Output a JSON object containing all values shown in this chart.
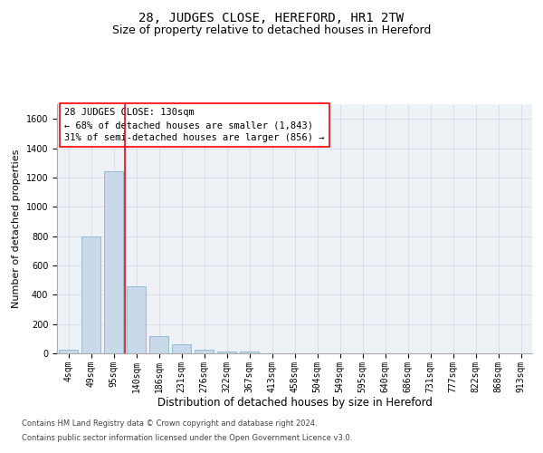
{
  "title": "28, JUDGES CLOSE, HEREFORD, HR1 2TW",
  "subtitle": "Size of property relative to detached houses in Hereford",
  "xlabel": "Distribution of detached houses by size in Hereford",
  "ylabel": "Number of detached properties",
  "categories": [
    "4sqm",
    "49sqm",
    "95sqm",
    "140sqm",
    "186sqm",
    "231sqm",
    "276sqm",
    "322sqm",
    "367sqm",
    "413sqm",
    "458sqm",
    "504sqm",
    "549sqm",
    "595sqm",
    "640sqm",
    "686sqm",
    "731sqm",
    "777sqm",
    "822sqm",
    "868sqm",
    "913sqm"
  ],
  "values": [
    25,
    800,
    1240,
    460,
    120,
    60,
    25,
    15,
    15,
    0,
    0,
    0,
    0,
    0,
    0,
    0,
    0,
    0,
    0,
    0,
    0
  ],
  "bar_color": "#c8daea",
  "bar_edge_color": "#89b4cc",
  "bar_edge_width": 0.6,
  "red_line_x": 2.5,
  "annotation_text": "28 JUDGES CLOSE: 130sqm\n← 68% of detached houses are smaller (1,843)\n31% of semi-detached houses are larger (856) →",
  "annotation_box_color": "white",
  "annotation_box_edge_color": "red",
  "ylim": [
    0,
    1700
  ],
  "yticks": [
    0,
    200,
    400,
    600,
    800,
    1000,
    1200,
    1400,
    1600
  ],
  "grid_color": "#d0d8e0",
  "background_color": "#eef2f7",
  "footer_line1": "Contains HM Land Registry data © Crown copyright and database right 2024.",
  "footer_line2": "Contains public sector information licensed under the Open Government Licence v3.0.",
  "title_fontsize": 10,
  "subtitle_fontsize": 9,
  "xlabel_fontsize": 8.5,
  "ylabel_fontsize": 8,
  "tick_fontsize": 7,
  "annotation_fontsize": 7.5
}
